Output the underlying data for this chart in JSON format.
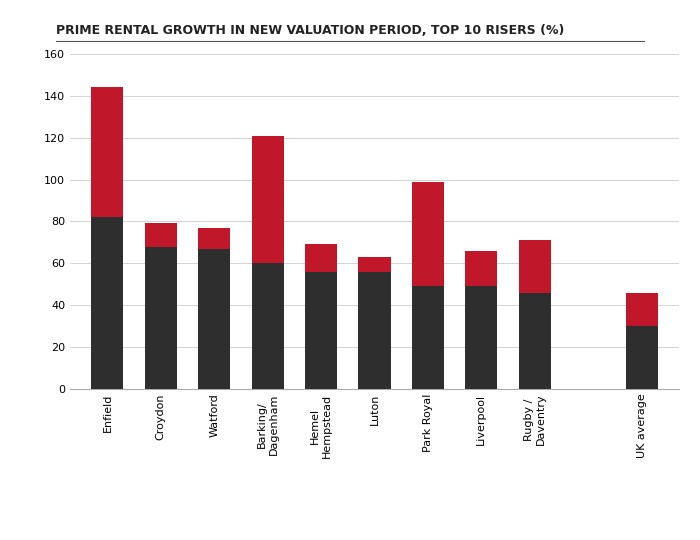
{
  "title": "PRIME RENTAL GROWTH IN NEW VALUATION PERIOD, TOP 10 RISERS (%)",
  "categories": [
    "Enfield",
    "Croydon",
    "Watford",
    "Barking/\nDagenham",
    "Hemel\nHempstead",
    "Luton",
    "Park Royal",
    "Liverpool",
    "Rugby /\nDaventry",
    "UK average"
  ],
  "revaluation": [
    82,
    68,
    67,
    60,
    56,
    56,
    49,
    49,
    46,
    30
  ],
  "growth_since": [
    62,
    11,
    10,
    61,
    13,
    7,
    50,
    17,
    25,
    16
  ],
  "bar_color_dark": "#2e2e2e",
  "bar_color_red": "#c0182a",
  "ylim": [
    0,
    160
  ],
  "yticks": [
    0,
    20,
    40,
    60,
    80,
    100,
    120,
    140,
    160
  ],
  "background_color": "#ffffff",
  "title_fontsize": 9,
  "tick_fontsize": 8,
  "legend_fontsize": 8,
  "x_positions": [
    0,
    1,
    2,
    3,
    4,
    5,
    6,
    7,
    8,
    10
  ]
}
